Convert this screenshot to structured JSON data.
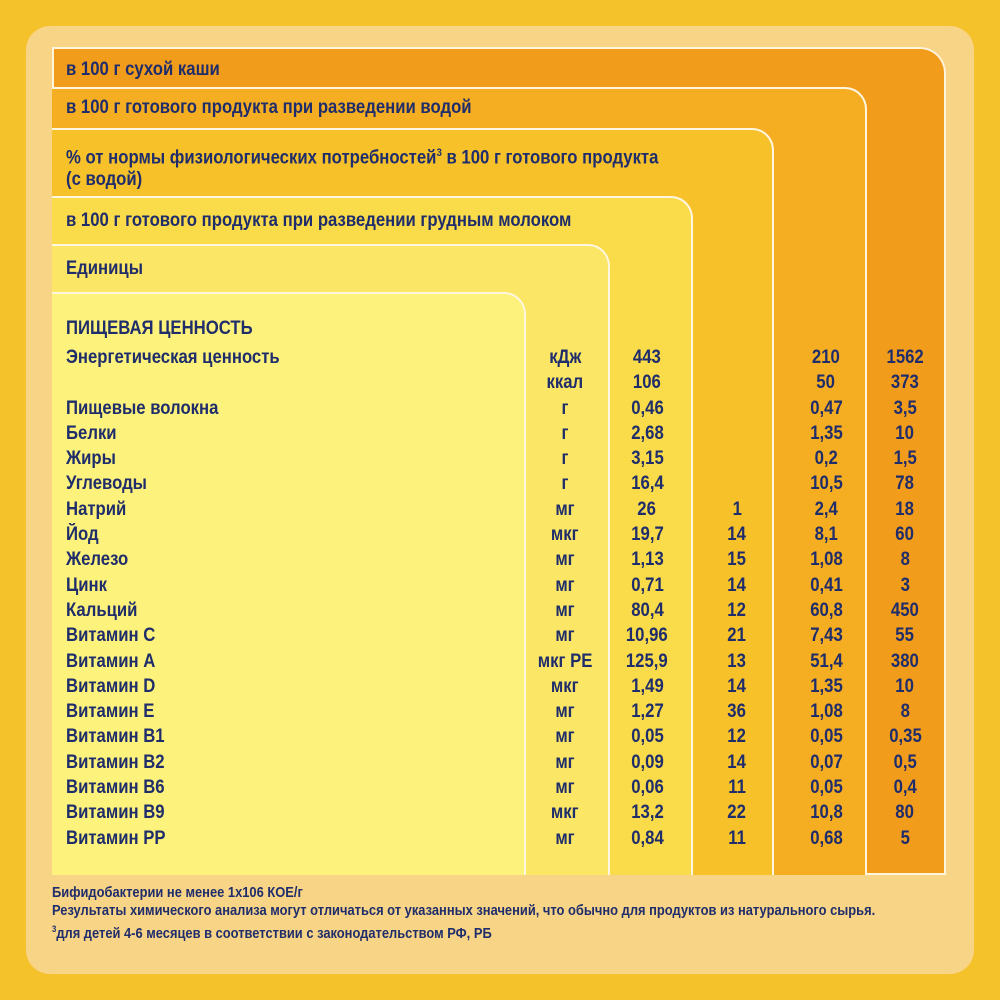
{
  "headers": {
    "dry": "в 100 г сухой каши",
    "water": "в 100 г готового продукта при разведении водой",
    "pct_line1": "% от нормы физиологических потребностей",
    "pct_sup": "3",
    "pct_line1_tail": " в 100 г готового продукта",
    "pct_line2": "(с водой)",
    "milk": "в 100 г готового продукта при разведении грудным молоком",
    "units": "Единицы"
  },
  "section_title": "ПИЩЕВАЯ ЦЕННОСТЬ",
  "rows": [
    {
      "name": "Энергетическая ценность",
      "unit": "кДж",
      "milk": "443",
      "pct": "",
      "water": "210",
      "dry": "1562"
    },
    {
      "name": "",
      "unit": "ккал",
      "milk": "106",
      "pct": "",
      "water": "50",
      "dry": "373"
    },
    {
      "name": "Пищевые волокна",
      "unit": "г",
      "milk": "0,46",
      "pct": "",
      "water": "0,47",
      "dry": "3,5"
    },
    {
      "name": "Белки",
      "unit": "г",
      "milk": "2,68",
      "pct": "",
      "water": "1,35",
      "dry": "10"
    },
    {
      "name": "Жиры",
      "unit": "г",
      "milk": "3,15",
      "pct": "",
      "water": "0,2",
      "dry": "1,5"
    },
    {
      "name": "Углеводы",
      "unit": "г",
      "milk": "16,4",
      "pct": "",
      "water": "10,5",
      "dry": "78"
    },
    {
      "name": "Натрий",
      "unit": "мг",
      "milk": "26",
      "pct": "1",
      "water": "2,4",
      "dry": "18"
    },
    {
      "name": "Йод",
      "unit": "мкг",
      "milk": "19,7",
      "pct": "14",
      "water": "8,1",
      "dry": "60"
    },
    {
      "name": "Железо",
      "unit": "мг",
      "milk": "1,13",
      "pct": "15",
      "water": "1,08",
      "dry": "8"
    },
    {
      "name": "Цинк",
      "unit": "мг",
      "milk": "0,71",
      "pct": "14",
      "water": "0,41",
      "dry": "3"
    },
    {
      "name": "Кальций",
      "unit": "мг",
      "milk": "80,4",
      "pct": "12",
      "water": "60,8",
      "dry": "450"
    },
    {
      "name": "Витамин C",
      "unit": "мг",
      "milk": "10,96",
      "pct": "21",
      "water": "7,43",
      "dry": "55"
    },
    {
      "name": "Витамин A",
      "unit": "мкг РЕ",
      "milk": "125,9",
      "pct": "13",
      "water": "51,4",
      "dry": "380"
    },
    {
      "name": "Витамин D",
      "unit": "мкг",
      "milk": "1,49",
      "pct": "14",
      "water": "1,35",
      "dry": "10"
    },
    {
      "name": "Витамин E",
      "unit": "мг",
      "milk": "1,27",
      "pct": "36",
      "water": "1,08",
      "dry": "8"
    },
    {
      "name": "Витамин B1",
      "unit": "мг",
      "milk": "0,05",
      "pct": "12",
      "water": "0,05",
      "dry": "0,35"
    },
    {
      "name": "Витамин B2",
      "unit": "мг",
      "milk": "0,09",
      "pct": "14",
      "water": "0,07",
      "dry": "0,5"
    },
    {
      "name": "Витамин B6",
      "unit": "мг",
      "milk": "0,06",
      "pct": "11",
      "water": "0,05",
      "dry": "0,4"
    },
    {
      "name": "Витамин B9",
      "unit": "мкг",
      "milk": "13,2",
      "pct": "22",
      "water": "10,8",
      "dry": "80"
    },
    {
      "name": "Витамин PP",
      "unit": "мг",
      "milk": "0,84",
      "pct": "11",
      "water": "0,68",
      "dry": "5"
    }
  ],
  "footer": {
    "line1": "Бифидобактерии не менее 1x106 КОЕ/г",
    "line2": "Результаты химического анализа могут отличаться от указанных значений, что обычно для продуктов из натурального сырья.",
    "line3_sup": "3",
    "line3": "для детей 4-6 месяцев в соответствии с законодательством РФ, РБ"
  }
}
